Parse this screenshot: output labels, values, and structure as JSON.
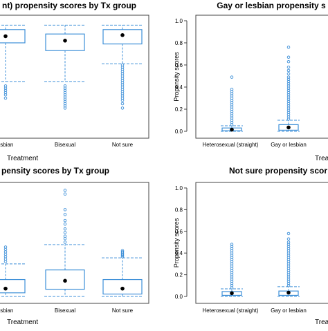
{
  "colors": {
    "box": "#3d8fd8",
    "point": "#3d8fd8",
    "median": "#000000",
    "frame": "#444444",
    "text": "#000000"
  },
  "chart_data": [
    {
      "type": "box",
      "title": "nt)  propensity scores by Tx group",
      "xlabel": "Treatment",
      "ylabel": "",
      "ylim": [
        0,
        1.0
      ],
      "categories": [
        "or lesbian",
        "Bisexual",
        "Not sure"
      ],
      "boxes": [
        {
          "whisker_low": 0.45,
          "q1": 0.8,
          "mean": 0.86,
          "q3": 0.92,
          "whisker_high": 0.96,
          "outliers": [
            0.41,
            0.39,
            0.37,
            0.35,
            0.33,
            0.3
          ]
        },
        {
          "whisker_low": 0.45,
          "q1": 0.73,
          "mean": 0.82,
          "q3": 0.88,
          "whisker_high": 0.96,
          "outliers": [
            0.41,
            0.39,
            0.37,
            0.35,
            0.33,
            0.31,
            0.29,
            0.27,
            0.25,
            0.23,
            0.21
          ]
        },
        {
          "whisker_low": 0.61,
          "q1": 0.79,
          "mean": 0.87,
          "q3": 0.92,
          "whisker_high": 0.96,
          "outliers": [
            0.6,
            0.58,
            0.56,
            0.54,
            0.52,
            0.5,
            0.48,
            0.46,
            0.44,
            0.42,
            0.4,
            0.38,
            0.36,
            0.34,
            0.32,
            0.3,
            0.28,
            0.25,
            0.21
          ]
        }
      ]
    },
    {
      "type": "box",
      "title": "Gay or lesbian  propensity s",
      "xlabel": "Treatme",
      "ylabel": "Propensity scores",
      "ylim": [
        0,
        1.0
      ],
      "yticks": [
        "0.0",
        "0.2",
        "0.4",
        "0.6",
        "0.8",
        "1.0"
      ],
      "categories": [
        "Heterosexual (straight)",
        "Gay or lesbian"
      ],
      "boxes": [
        {
          "whisker_low": 0.0,
          "q1": 0.005,
          "mean": 0.015,
          "q3": 0.03,
          "whisker_high": 0.05,
          "outliers": [
            0.06,
            0.08,
            0.1,
            0.12,
            0.14,
            0.16,
            0.18,
            0.2,
            0.22,
            0.24,
            0.26,
            0.28,
            0.3,
            0.32,
            0.34,
            0.36,
            0.38,
            0.49
          ]
        },
        {
          "whisker_low": 0.0,
          "q1": 0.01,
          "mean": 0.035,
          "q3": 0.06,
          "whisker_high": 0.1,
          "outliers": [
            0.11,
            0.13,
            0.15,
            0.17,
            0.19,
            0.21,
            0.23,
            0.25,
            0.27,
            0.29,
            0.31,
            0.33,
            0.35,
            0.37,
            0.39,
            0.41,
            0.43,
            0.45,
            0.47,
            0.49,
            0.52,
            0.55,
            0.58,
            0.63,
            0.67,
            0.76
          ]
        }
      ]
    },
    {
      "type": "box",
      "title": "pensity scores by Tx group",
      "xlabel": "Treatment",
      "ylabel": "",
      "ylim": [
        0,
        0.9
      ],
      "categories": [
        "or lesbian",
        "Bisexual",
        "Not sure"
      ],
      "boxes": [
        {
          "whisker_low": 0.0,
          "q1": 0.03,
          "mean": 0.065,
          "q3": 0.14,
          "whisker_high": 0.27,
          "outliers": [
            0.29,
            0.31,
            0.33,
            0.35,
            0.37,
            0.39,
            0.41
          ]
        },
        {
          "whisker_low": 0.0,
          "q1": 0.06,
          "mean": 0.13,
          "q3": 0.22,
          "whisker_high": 0.43,
          "outliers": [
            0.45,
            0.48,
            0.5,
            0.53,
            0.56,
            0.6,
            0.63,
            0.68,
            0.72,
            0.85,
            0.88
          ]
        },
        {
          "whisker_low": 0.0,
          "q1": 0.02,
          "mean": 0.065,
          "q3": 0.14,
          "whisker_high": 0.32,
          "outliers": [
            0.33,
            0.34,
            0.35,
            0.36,
            0.37,
            0.38
          ]
        }
      ]
    },
    {
      "type": "box",
      "title": "Not sure  propensity scor",
      "xlabel": "Treatme",
      "ylabel": "Propensity scores",
      "ylim": [
        0,
        1.0
      ],
      "yticks": [
        "0.0",
        "0.2",
        "0.4",
        "0.6",
        "0.8",
        "1.0"
      ],
      "categories": [
        "Heterosexual (straight)",
        "Gay or lesbian"
      ],
      "boxes": [
        {
          "whisker_low": 0.0,
          "q1": 0.01,
          "mean": 0.03,
          "q3": 0.045,
          "whisker_high": 0.07,
          "outliers": [
            0.08,
            0.1,
            0.12,
            0.14,
            0.16,
            0.18,
            0.2,
            0.22,
            0.24,
            0.26,
            0.28,
            0.3,
            0.32,
            0.34,
            0.36,
            0.38,
            0.4,
            0.42,
            0.44,
            0.46,
            0.48
          ]
        },
        {
          "whisker_low": 0.0,
          "q1": 0.01,
          "mean": 0.035,
          "q3": 0.05,
          "whisker_high": 0.09,
          "outliers": [
            0.1,
            0.12,
            0.14,
            0.16,
            0.18,
            0.2,
            0.22,
            0.24,
            0.26,
            0.28,
            0.3,
            0.32,
            0.34,
            0.36,
            0.38,
            0.4,
            0.42,
            0.44,
            0.46,
            0.48,
            0.5,
            0.53,
            0.58
          ]
        }
      ]
    }
  ]
}
